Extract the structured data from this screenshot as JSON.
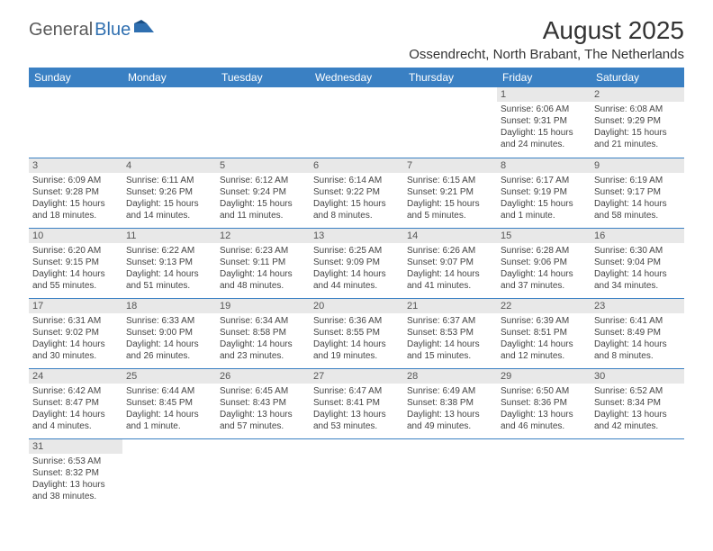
{
  "logo": {
    "part1": "General",
    "part2": "Blue"
  },
  "title": "August 2025",
  "location": "Ossendrecht, North Brabant, The Netherlands",
  "colors": {
    "header_bg": "#3a80c3",
    "header_text": "#ffffff",
    "daynum_bg": "#e8e8e8",
    "rule": "#3a80c3",
    "logo_gray": "#5a5a5a",
    "logo_blue": "#2f6fb0"
  },
  "day_headers": [
    "Sunday",
    "Monday",
    "Tuesday",
    "Wednesday",
    "Thursday",
    "Friday",
    "Saturday"
  ],
  "weeks": [
    [
      {
        "n": "",
        "empty": true
      },
      {
        "n": "",
        "empty": true
      },
      {
        "n": "",
        "empty": true
      },
      {
        "n": "",
        "empty": true
      },
      {
        "n": "",
        "empty": true
      },
      {
        "n": "1",
        "sr": "Sunrise: 6:06 AM",
        "ss": "Sunset: 9:31 PM",
        "dl": "Daylight: 15 hours and 24 minutes."
      },
      {
        "n": "2",
        "sr": "Sunrise: 6:08 AM",
        "ss": "Sunset: 9:29 PM",
        "dl": "Daylight: 15 hours and 21 minutes."
      }
    ],
    [
      {
        "n": "3",
        "sr": "Sunrise: 6:09 AM",
        "ss": "Sunset: 9:28 PM",
        "dl": "Daylight: 15 hours and 18 minutes."
      },
      {
        "n": "4",
        "sr": "Sunrise: 6:11 AM",
        "ss": "Sunset: 9:26 PM",
        "dl": "Daylight: 15 hours and 14 minutes."
      },
      {
        "n": "5",
        "sr": "Sunrise: 6:12 AM",
        "ss": "Sunset: 9:24 PM",
        "dl": "Daylight: 15 hours and 11 minutes."
      },
      {
        "n": "6",
        "sr": "Sunrise: 6:14 AM",
        "ss": "Sunset: 9:22 PM",
        "dl": "Daylight: 15 hours and 8 minutes."
      },
      {
        "n": "7",
        "sr": "Sunrise: 6:15 AM",
        "ss": "Sunset: 9:21 PM",
        "dl": "Daylight: 15 hours and 5 minutes."
      },
      {
        "n": "8",
        "sr": "Sunrise: 6:17 AM",
        "ss": "Sunset: 9:19 PM",
        "dl": "Daylight: 15 hours and 1 minute."
      },
      {
        "n": "9",
        "sr": "Sunrise: 6:19 AM",
        "ss": "Sunset: 9:17 PM",
        "dl": "Daylight: 14 hours and 58 minutes."
      }
    ],
    [
      {
        "n": "10",
        "sr": "Sunrise: 6:20 AM",
        "ss": "Sunset: 9:15 PM",
        "dl": "Daylight: 14 hours and 55 minutes."
      },
      {
        "n": "11",
        "sr": "Sunrise: 6:22 AM",
        "ss": "Sunset: 9:13 PM",
        "dl": "Daylight: 14 hours and 51 minutes."
      },
      {
        "n": "12",
        "sr": "Sunrise: 6:23 AM",
        "ss": "Sunset: 9:11 PM",
        "dl": "Daylight: 14 hours and 48 minutes."
      },
      {
        "n": "13",
        "sr": "Sunrise: 6:25 AM",
        "ss": "Sunset: 9:09 PM",
        "dl": "Daylight: 14 hours and 44 minutes."
      },
      {
        "n": "14",
        "sr": "Sunrise: 6:26 AM",
        "ss": "Sunset: 9:07 PM",
        "dl": "Daylight: 14 hours and 41 minutes."
      },
      {
        "n": "15",
        "sr": "Sunrise: 6:28 AM",
        "ss": "Sunset: 9:06 PM",
        "dl": "Daylight: 14 hours and 37 minutes."
      },
      {
        "n": "16",
        "sr": "Sunrise: 6:30 AM",
        "ss": "Sunset: 9:04 PM",
        "dl": "Daylight: 14 hours and 34 minutes."
      }
    ],
    [
      {
        "n": "17",
        "sr": "Sunrise: 6:31 AM",
        "ss": "Sunset: 9:02 PM",
        "dl": "Daylight: 14 hours and 30 minutes."
      },
      {
        "n": "18",
        "sr": "Sunrise: 6:33 AM",
        "ss": "Sunset: 9:00 PM",
        "dl": "Daylight: 14 hours and 26 minutes."
      },
      {
        "n": "19",
        "sr": "Sunrise: 6:34 AM",
        "ss": "Sunset: 8:58 PM",
        "dl": "Daylight: 14 hours and 23 minutes."
      },
      {
        "n": "20",
        "sr": "Sunrise: 6:36 AM",
        "ss": "Sunset: 8:55 PM",
        "dl": "Daylight: 14 hours and 19 minutes."
      },
      {
        "n": "21",
        "sr": "Sunrise: 6:37 AM",
        "ss": "Sunset: 8:53 PM",
        "dl": "Daylight: 14 hours and 15 minutes."
      },
      {
        "n": "22",
        "sr": "Sunrise: 6:39 AM",
        "ss": "Sunset: 8:51 PM",
        "dl": "Daylight: 14 hours and 12 minutes."
      },
      {
        "n": "23",
        "sr": "Sunrise: 6:41 AM",
        "ss": "Sunset: 8:49 PM",
        "dl": "Daylight: 14 hours and 8 minutes."
      }
    ],
    [
      {
        "n": "24",
        "sr": "Sunrise: 6:42 AM",
        "ss": "Sunset: 8:47 PM",
        "dl": "Daylight: 14 hours and 4 minutes."
      },
      {
        "n": "25",
        "sr": "Sunrise: 6:44 AM",
        "ss": "Sunset: 8:45 PM",
        "dl": "Daylight: 14 hours and 1 minute."
      },
      {
        "n": "26",
        "sr": "Sunrise: 6:45 AM",
        "ss": "Sunset: 8:43 PM",
        "dl": "Daylight: 13 hours and 57 minutes."
      },
      {
        "n": "27",
        "sr": "Sunrise: 6:47 AM",
        "ss": "Sunset: 8:41 PM",
        "dl": "Daylight: 13 hours and 53 minutes."
      },
      {
        "n": "28",
        "sr": "Sunrise: 6:49 AM",
        "ss": "Sunset: 8:38 PM",
        "dl": "Daylight: 13 hours and 49 minutes."
      },
      {
        "n": "29",
        "sr": "Sunrise: 6:50 AM",
        "ss": "Sunset: 8:36 PM",
        "dl": "Daylight: 13 hours and 46 minutes."
      },
      {
        "n": "30",
        "sr": "Sunrise: 6:52 AM",
        "ss": "Sunset: 8:34 PM",
        "dl": "Daylight: 13 hours and 42 minutes."
      }
    ],
    [
      {
        "n": "31",
        "sr": "Sunrise: 6:53 AM",
        "ss": "Sunset: 8:32 PM",
        "dl": "Daylight: 13 hours and 38 minutes."
      },
      {
        "n": "",
        "empty": true
      },
      {
        "n": "",
        "empty": true
      },
      {
        "n": "",
        "empty": true
      },
      {
        "n": "",
        "empty": true
      },
      {
        "n": "",
        "empty": true
      },
      {
        "n": "",
        "empty": true
      }
    ]
  ]
}
